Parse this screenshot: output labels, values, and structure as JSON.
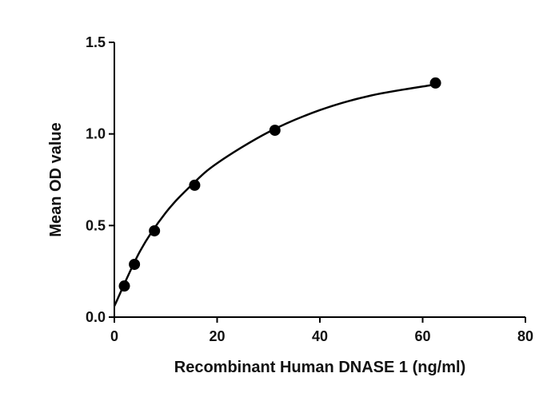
{
  "chart_data": {
    "type": "scatter",
    "x_label": "Recombinant Human DNASE 1 (ng/ml)",
    "y_label": "Mean OD value",
    "x": [
      1.95,
      3.91,
      7.81,
      15.63,
      31.25,
      62.5
    ],
    "values": [
      0.17,
      0.288,
      0.471,
      0.72,
      1.02,
      1.278
    ],
    "color": "#000000",
    "curve": {
      "x": [
        0,
        5,
        10,
        15,
        20,
        30,
        40,
        50,
        62.5
      ],
      "y": [
        0.06,
        0.36,
        0.57,
        0.72,
        0.84,
        1.01,
        1.13,
        1.21,
        1.27
      ]
    },
    "xlim": [
      0,
      80
    ],
    "ylim": [
      0,
      1.5
    ],
    "xticks": [
      0,
      20,
      40,
      60,
      80
    ],
    "yticks": [
      {
        "value": 0,
        "label": "0.0"
      },
      0.5,
      {
        "value": 1,
        "label": "1.0"
      },
      1.5
    ]
  }
}
